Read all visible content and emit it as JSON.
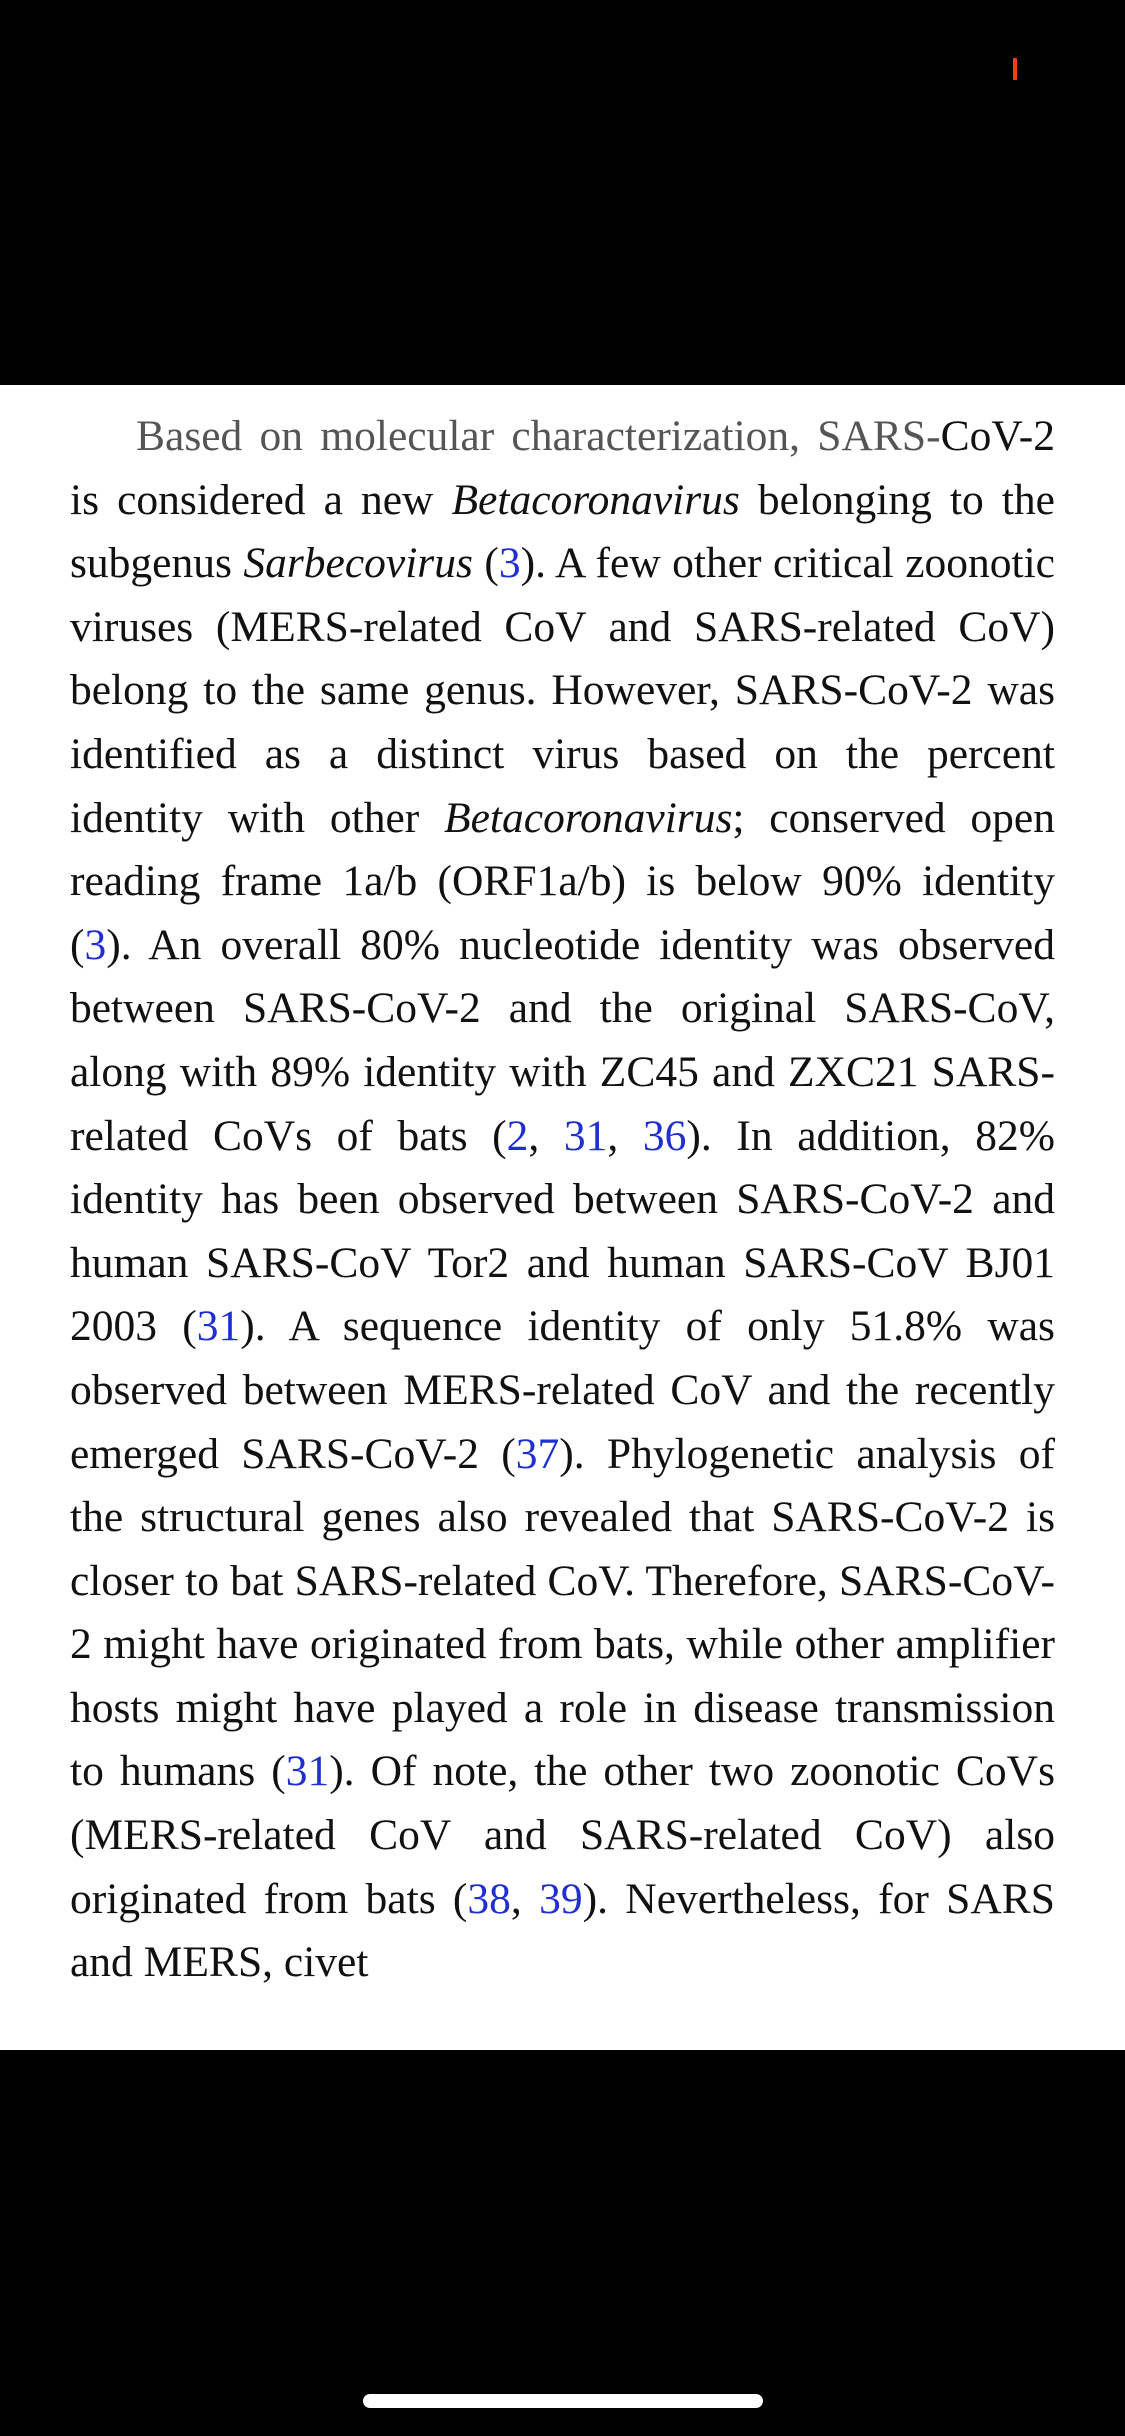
{
  "article": {
    "segments": [
      {
        "t": "Based on molecular characterization, SARS-",
        "style": "dim"
      },
      {
        "t": "CoV-2 is considered a new "
      },
      {
        "t": "Betacoronavirus",
        "style": "italic"
      },
      {
        "t": " belonging to the subgenus "
      },
      {
        "t": "Sarbecovirus",
        "style": "italic"
      },
      {
        "t": " ("
      },
      {
        "t": "3",
        "style": "cite"
      },
      {
        "t": "). A few other critical zoonotic viruses (MERS-related CoV and SARS-related CoV) belong to the same genus. However, SARS-CoV-2 was identified as a distinct virus based on the percent identity with other "
      },
      {
        "t": "Betacoronavirus",
        "style": "italic"
      },
      {
        "t": "; conserved open reading frame 1a/b (ORF1a/b) is below 90% identity ("
      },
      {
        "t": "3",
        "style": "cite"
      },
      {
        "t": "). An overall 80% nucleotide identity was observed between SARS-CoV-2 and the original SARS-CoV, along with 89% identity with ZC45 and ZXC21 SARS-related CoVs of bats ("
      },
      {
        "t": "2",
        "style": "cite"
      },
      {
        "t": ", "
      },
      {
        "t": "31",
        "style": "cite"
      },
      {
        "t": ", "
      },
      {
        "t": "36",
        "style": "cite"
      },
      {
        "t": "). In addition, 82% identity has been observed between SARS-CoV-2 and human SARS-CoV Tor2 and human SARS-CoV BJ01 2003 ("
      },
      {
        "t": "31",
        "style": "cite"
      },
      {
        "t": "). A sequence identity of only 51.8% was observed between MERS-related CoV and the recently emerged SARS-CoV-2 ("
      },
      {
        "t": "37",
        "style": "cite"
      },
      {
        "t": "). Phylogenetic analysis of the structural genes also revealed that SARS-CoV-2 is closer to bat SARS-related CoV. Therefore, SARS-CoV-2 might have originated from bats, while other amplifier hosts might have played a role in disease transmission to humans ("
      },
      {
        "t": "31",
        "style": "cite"
      },
      {
        "t": "). Of note, the other two zoonotic CoVs (MERS-related CoV and SARS-related CoV) also originated from bats ("
      },
      {
        "t": "38",
        "style": "cite"
      },
      {
        "t": ", "
      },
      {
        "t": "39",
        "style": "cite"
      },
      {
        "t": "). Nevertheless, for SARS and MERS, civet"
      }
    ]
  },
  "colors": {
    "citation": "#1f2fd0",
    "text": "#111111",
    "faded_text": "#555555",
    "status_mark": "#ff3b1f"
  }
}
